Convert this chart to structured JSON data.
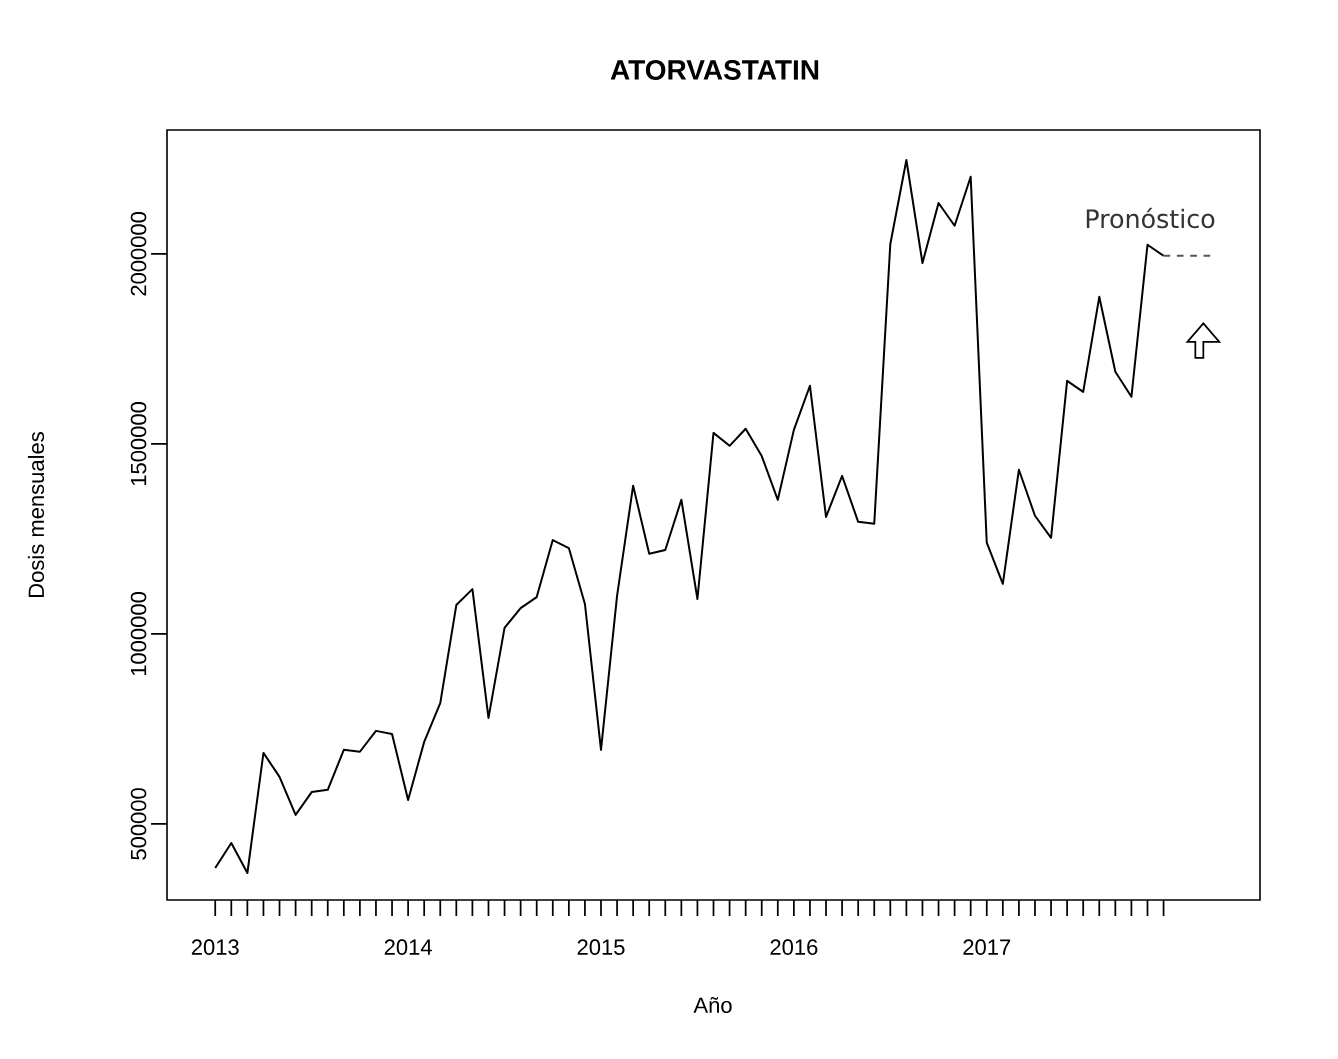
{
  "chart_data": {
    "type": "line",
    "title": "ATORVASTATIN",
    "xlabel": "Año",
    "ylabel": "Dosis mensuales",
    "series": [
      {
        "color": "#000000",
        "line_style": "solid",
        "x": [
          "2013-01",
          "2013-02",
          "2013-03",
          "2013-04",
          "2013-05",
          "2013-06",
          "2013-07",
          "2013-08",
          "2013-09",
          "2013-10",
          "2013-11",
          "2013-12",
          "2014-01",
          "2014-02",
          "2014-03",
          "2014-04",
          "2014-05",
          "2014-06",
          "2014-07",
          "2014-08",
          "2014-09",
          "2014-10",
          "2014-11",
          "2014-12",
          "2015-01",
          "2015-02",
          "2015-03",
          "2015-04",
          "2015-05",
          "2015-06",
          "2015-07",
          "2015-08",
          "2015-09",
          "2015-10",
          "2015-11",
          "2015-12",
          "2016-01",
          "2016-02",
          "2016-03",
          "2016-04",
          "2016-05",
          "2016-06",
          "2016-07",
          "2016-08",
          "2016-09",
          "2016-10",
          "2016-11",
          "2016-12",
          "2017-01",
          "2017-02",
          "2017-03",
          "2017-04",
          "2017-05",
          "2017-06",
          "2017-07",
          "2017-08",
          "2017-09",
          "2017-10",
          "2017-11",
          "2017-12"
        ],
        "values": [
          384000,
          450000,
          371000,
          687000,
          624000,
          524000,
          584000,
          590000,
          695000,
          690000,
          745000,
          737000,
          563000,
          716000,
          818000,
          1076000,
          1118000,
          779000,
          1016000,
          1068000,
          1097000,
          1247000,
          1226000,
          1079000,
          695000,
          1100000,
          1390000,
          1211000,
          1221000,
          1353000,
          1092000,
          1529000,
          1495000,
          1540000,
          1468000,
          1353000,
          1537000,
          1653000,
          1308000,
          1416000,
          1295000,
          1290000,
          2026000,
          2247000,
          1976000,
          2134000,
          2074000,
          2203000,
          1240000,
          1132000,
          1432000,
          1311000,
          1253000,
          1666000,
          1637000,
          1887000,
          1690000,
          1624000,
          2024000,
          1995000
        ]
      },
      {
        "color": "#555555",
        "line_style": "dashed",
        "x": [
          "2017-12",
          "2018-01",
          "2018-02",
          "2018-03"
        ],
        "values": [
          1995000,
          1995000,
          1995000,
          1995000
        ]
      }
    ],
    "annotations": [
      "Pronóstico"
    ],
    "xlim": [
      "2012-10",
      "2018-06"
    ],
    "ylim": [
      300000,
      2326000
    ],
    "xticks": [
      {
        "value": "2013-01",
        "label": "2013"
      },
      {
        "value": "2013-02",
        "label": null
      },
      {
        "value": "2013-03",
        "label": null
      },
      {
        "value": "2013-04",
        "label": null
      },
      {
        "value": "2013-05",
        "label": null
      },
      {
        "value": "2013-06",
        "label": null
      },
      {
        "value": "2013-07",
        "label": null
      },
      {
        "value": "2013-08",
        "label": null
      },
      {
        "value": "2013-09",
        "label": null
      },
      {
        "value": "2013-10",
        "label": null
      },
      {
        "value": "2013-11",
        "label": null
      },
      {
        "value": "2013-12",
        "label": null
      },
      {
        "value": "2014-01",
        "label": "2014"
      },
      {
        "value": "2014-02",
        "label": null
      },
      {
        "value": "2014-03",
        "label": null
      },
      {
        "value": "2014-04",
        "label": null
      },
      {
        "value": "2014-05",
        "label": null
      },
      {
        "value": "2014-06",
        "label": null
      },
      {
        "value": "2014-07",
        "label": null
      },
      {
        "value": "2014-08",
        "label": null
      },
      {
        "value": "2014-09",
        "label": null
      },
      {
        "value": "2014-10",
        "label": null
      },
      {
        "value": "2014-11",
        "label": null
      },
      {
        "value": "2014-12",
        "label": null
      },
      {
        "value": "2015-01",
        "label": "2015"
      },
      {
        "value": "2015-02",
        "label": null
      },
      {
        "value": "2015-03",
        "label": null
      },
      {
        "value": "2015-04",
        "label": null
      },
      {
        "value": "2015-05",
        "label": null
      },
      {
        "value": "2015-06",
        "label": null
      },
      {
        "value": "2015-07",
        "label": null
      },
      {
        "value": "2015-08",
        "label": null
      },
      {
        "value": "2015-09",
        "label": null
      },
      {
        "value": "2015-10",
        "label": null
      },
      {
        "value": "2015-11",
        "label": null
      },
      {
        "value": "2015-12",
        "label": null
      },
      {
        "value": "2016-01",
        "label": "2016"
      },
      {
        "value": "2016-02",
        "label": null
      },
      {
        "value": "2016-03",
        "label": null
      },
      {
        "value": "2016-04",
        "label": null
      },
      {
        "value": "2016-05",
        "label": null
      },
      {
        "value": "2016-06",
        "label": null
      },
      {
        "value": "2016-07",
        "label": null
      },
      {
        "value": "2016-08",
        "label": null
      },
      {
        "value": "2016-09",
        "label": null
      },
      {
        "value": "2016-10",
        "label": null
      },
      {
        "value": "2016-11",
        "label": null
      },
      {
        "value": "2016-12",
        "label": null
      },
      {
        "value": "2017-01",
        "label": "2017"
      },
      {
        "value": "2017-02",
        "label": null
      },
      {
        "value": "2017-03",
        "label": null
      },
      {
        "value": "2017-04",
        "label": null
      },
      {
        "value": "2017-05",
        "label": null
      },
      {
        "value": "2017-06",
        "label": null
      },
      {
        "value": "2017-07",
        "label": null
      },
      {
        "value": "2017-08",
        "label": null
      },
      {
        "value": "2017-09",
        "label": null
      },
      {
        "value": "2017-10",
        "label": null
      },
      {
        "value": "2017-11",
        "label": null
      },
      {
        "value": "2017-12",
        "label": null
      }
    ],
    "yticks": [
      500000,
      1000000,
      1500000,
      2000000
    ],
    "marker": "none"
  }
}
